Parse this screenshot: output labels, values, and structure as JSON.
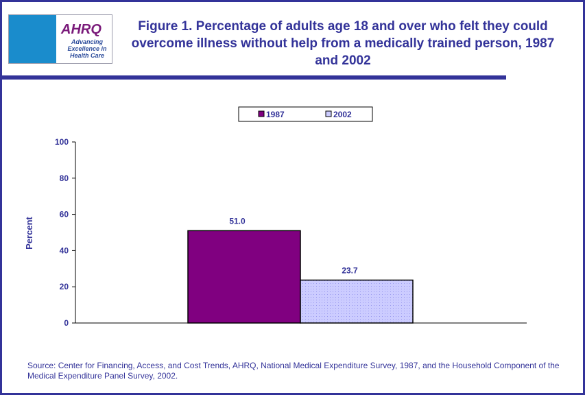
{
  "logo": {
    "text": "AHRQ",
    "tagline": "Advancing Excellence in Health Care"
  },
  "title": "Figure 1. Percentage of adults age 18 and over who felt they could overcome illness without help from a medically trained person, 1987 and 2002",
  "source": "Source: Center for Financing, Access, and Cost Trends, AHRQ, National Medical Expenditure Survey, 1987, and the Household Component of the Medical Expenditure Panel Survey, 2002.",
  "colors": {
    "navy": "#333399",
    "s1987": "#800080",
    "s2002": "#ccccff"
  },
  "chart_data": {
    "type": "bar",
    "title": "Figure 1. Percentage of adults age 18 and over who felt they could overcome illness without help from a medically trained person, 1987 and 2002",
    "xlabel": "",
    "ylabel": "Percent",
    "ylim": [
      0,
      100
    ],
    "yticks": [
      "0",
      "20",
      "40",
      "60",
      "80",
      "100"
    ],
    "categories": [
      ""
    ],
    "series": [
      {
        "name": "1987",
        "values": [
          51.0
        ],
        "label": "51.0",
        "color": "#800080"
      },
      {
        "name": "2002",
        "values": [
          23.7
        ],
        "label": "23.7",
        "color": "#ccccff"
      }
    ],
    "legend": "top-center",
    "grid": false
  }
}
